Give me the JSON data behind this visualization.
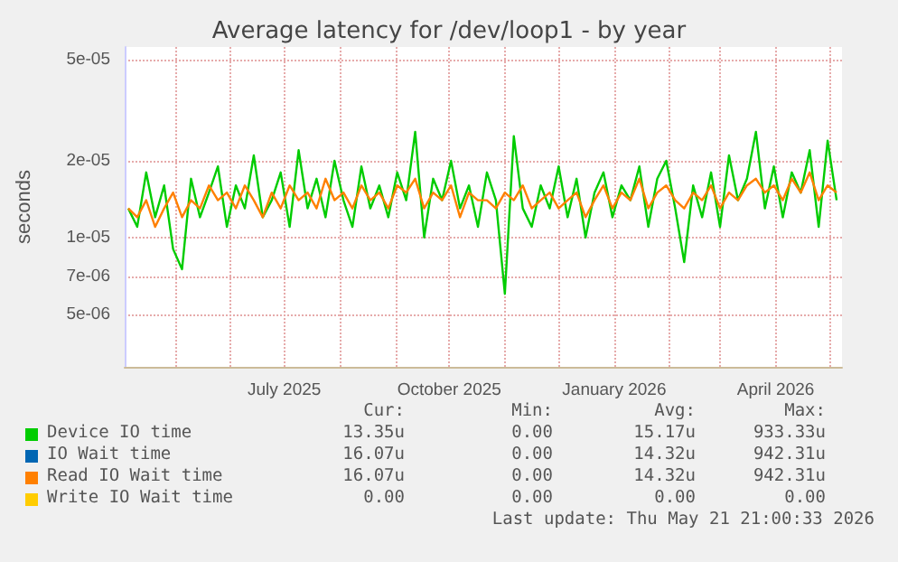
{
  "chart_data": {
    "type": "line",
    "title": "Average latency for /dev/loop1 - by year",
    "ylabel": "seconds",
    "log": "y",
    "grid": true,
    "legend": "bottom",
    "marker": "none",
    "line_style": "solid",
    "xlim": [
      "2025-04-03",
      "2026-05-08"
    ],
    "xticks": [
      {
        "value": "2025-05-01",
        "label": null
      },
      {
        "value": "2025-06-01",
        "label": null
      },
      {
        "value": "2025-07-01",
        "label": "July 2025"
      },
      {
        "value": "2025-08-01",
        "label": null
      },
      {
        "value": "2025-09-01",
        "label": null
      },
      {
        "value": "2025-10-01",
        "label": "October 2025"
      },
      {
        "value": "2025-11-01",
        "label": null
      },
      {
        "value": "2025-12-01",
        "label": null
      },
      {
        "value": "2026-01-01",
        "label": "January 2026"
      },
      {
        "value": "2026-02-01",
        "label": null
      },
      {
        "value": "2026-03-01",
        "label": null
      },
      {
        "value": "2026-04-01",
        "label": "April 2026"
      },
      {
        "value": "2026-05-01",
        "label": null
      }
    ],
    "ylim": [
      3.1e-06,
      5.6e-05
    ],
    "yticks": [
      {
        "value": 5e-06,
        "label": "5e-06"
      },
      {
        "value": 7e-06,
        "label": "7e-06"
      },
      {
        "value": 1e-05,
        "label": "1e-05"
      },
      {
        "value": 2e-05,
        "label": "2e-05"
      },
      {
        "value": 5e-05,
        "label": "5e-05"
      }
    ],
    "x": [
      "2025-04-05",
      "2025-04-10",
      "2025-04-15",
      "2025-04-20",
      "2025-04-25",
      "2025-04-30",
      "2025-05-05",
      "2025-05-10",
      "2025-05-15",
      "2025-05-20",
      "2025-05-25",
      "2025-05-30",
      "2025-06-04",
      "2025-06-09",
      "2025-06-14",
      "2025-06-19",
      "2025-06-24",
      "2025-06-29",
      "2025-07-04",
      "2025-07-09",
      "2025-07-14",
      "2025-07-19",
      "2025-07-24",
      "2025-07-29",
      "2025-08-03",
      "2025-08-08",
      "2025-08-13",
      "2025-08-18",
      "2025-08-23",
      "2025-08-28",
      "2025-09-02",
      "2025-09-07",
      "2025-09-12",
      "2025-09-17",
      "2025-09-22",
      "2025-09-27",
      "2025-10-02",
      "2025-10-07",
      "2025-10-12",
      "2025-10-17",
      "2025-10-22",
      "2025-10-27",
      "2025-11-01",
      "2025-11-06",
      "2025-11-11",
      "2025-11-16",
      "2025-11-21",
      "2025-11-26",
      "2025-12-01",
      "2025-12-06",
      "2025-12-11",
      "2025-12-16",
      "2025-12-21",
      "2025-12-26",
      "2025-12-31",
      "2026-01-05",
      "2026-01-10",
      "2026-01-15",
      "2026-01-20",
      "2026-01-25",
      "2026-01-30",
      "2026-02-04",
      "2026-02-09",
      "2026-02-14",
      "2026-02-19",
      "2026-02-24",
      "2026-03-01",
      "2026-03-06",
      "2026-03-11",
      "2026-03-16",
      "2026-03-21",
      "2026-03-26",
      "2026-03-31",
      "2026-04-05",
      "2026-04-10",
      "2026-04-15",
      "2026-04-20",
      "2026-04-25",
      "2026-04-30",
      "2026-05-05"
    ],
    "series": [
      {
        "name": "Device IO time",
        "color": "#00cc00",
        "values": [
          1.3e-05,
          1.1e-05,
          1.8e-05,
          1.2e-05,
          1.6e-05,
          9e-06,
          7.5e-06,
          1.7e-05,
          1.2e-05,
          1.5e-05,
          1.9e-05,
          1.1e-05,
          1.6e-05,
          1.3e-05,
          2.1e-05,
          1.2e-05,
          1.4e-05,
          1.8e-05,
          1.1e-05,
          2.2e-05,
          1.3e-05,
          1.7e-05,
          1.2e-05,
          2e-05,
          1.4e-05,
          1.1e-05,
          1.9e-05,
          1.3e-05,
          1.6e-05,
          1.2e-05,
          1.8e-05,
          1.4e-05,
          2.6e-05,
          1e-05,
          1.7e-05,
          1.4e-05,
          2e-05,
          1.3e-05,
          1.6e-05,
          1.1e-05,
          1.8e-05,
          1.4e-05,
          6e-06,
          2.5e-05,
          1.3e-05,
          1.1e-05,
          1.6e-05,
          1.3e-05,
          1.9e-05,
          1.2e-05,
          1.7e-05,
          1e-05,
          1.5e-05,
          1.8e-05,
          1.2e-05,
          1.6e-05,
          1.4e-05,
          1.9e-05,
          1.1e-05,
          1.7e-05,
          2e-05,
          1.3e-05,
          8e-06,
          1.6e-05,
          1.2e-05,
          1.8e-05,
          1.1e-05,
          2.1e-05,
          1.4e-05,
          1.7e-05,
          2.6e-05,
          1.3e-05,
          1.9e-05,
          1.2e-05,
          1.8e-05,
          1.5e-05,
          2.2e-05,
          1.1e-05,
          2.4e-05,
          1.4e-05
        ]
      },
      {
        "name": "IO Wait time",
        "color": "#0066b3",
        "values": [
          null,
          null,
          null,
          null,
          null,
          null,
          null,
          null,
          null,
          null,
          null,
          null,
          null,
          null,
          null,
          null,
          null,
          null,
          null,
          null,
          null,
          null,
          null,
          null,
          null,
          null,
          null,
          null,
          null,
          null,
          null,
          null,
          null,
          null,
          null,
          null,
          null,
          null,
          null,
          null,
          null,
          null,
          null,
          null,
          null,
          null,
          null,
          null,
          null,
          null,
          null,
          null,
          null,
          null,
          null,
          null,
          null,
          null,
          null,
          null,
          null,
          null,
          null,
          null,
          null,
          null,
          null,
          null,
          null,
          null,
          null,
          null,
          null,
          null,
          null,
          null,
          null,
          null,
          null,
          null
        ]
      },
      {
        "name": "Read IO Wait time",
        "color": "#ff8000",
        "values": [
          1.3e-05,
          1.2e-05,
          1.4e-05,
          1.1e-05,
          1.3e-05,
          1.5e-05,
          1.2e-05,
          1.4e-05,
          1.3e-05,
          1.6e-05,
          1.4e-05,
          1.5e-05,
          1.3e-05,
          1.6e-05,
          1.4e-05,
          1.2e-05,
          1.5e-05,
          1.3e-05,
          1.6e-05,
          1.4e-05,
          1.5e-05,
          1.3e-05,
          1.7e-05,
          1.4e-05,
          1.5e-05,
          1.3e-05,
          1.6e-05,
          1.4e-05,
          1.5e-05,
          1.3e-05,
          1.6e-05,
          1.5e-05,
          1.7e-05,
          1.3e-05,
          1.5e-05,
          1.4e-05,
          1.6e-05,
          1.2e-05,
          1.5e-05,
          1.4e-05,
          1.4e-05,
          1.3e-05,
          1.5e-05,
          1.4e-05,
          1.6e-05,
          1.3e-05,
          1.4e-05,
          1.5e-05,
          1.3e-05,
          1.4e-05,
          1.5e-05,
          1.2e-05,
          1.4e-05,
          1.6e-05,
          1.3e-05,
          1.5e-05,
          1.4e-05,
          1.7e-05,
          1.3e-05,
          1.5e-05,
          1.6e-05,
          1.4e-05,
          1.3e-05,
          1.5e-05,
          1.4e-05,
          1.6e-05,
          1.3e-05,
          1.5e-05,
          1.4e-05,
          1.6e-05,
          1.7e-05,
          1.5e-05,
          1.6e-05,
          1.4e-05,
          1.7e-05,
          1.5e-05,
          1.8e-05,
          1.4e-05,
          1.6e-05,
          1.5e-05
        ]
      },
      {
        "name": "Write IO Wait time",
        "color": "#ffcc00",
        "values": [
          null,
          null,
          null,
          null,
          null,
          null,
          null,
          null,
          null,
          null,
          null,
          null,
          null,
          null,
          null,
          null,
          null,
          null,
          null,
          null,
          null,
          null,
          null,
          null,
          null,
          null,
          null,
          null,
          null,
          null,
          null,
          null,
          null,
          null,
          null,
          null,
          null,
          null,
          null,
          null,
          null,
          null,
          null,
          null,
          null,
          null,
          null,
          null,
          null,
          null,
          null,
          null,
          null,
          null,
          null,
          null,
          null,
          null,
          null,
          null,
          null,
          null,
          null,
          null,
          null,
          null,
          null,
          null,
          null,
          null,
          null,
          null,
          null,
          null,
          null,
          null,
          null,
          null,
          null,
          null
        ]
      }
    ],
    "annotations": [
      "Cur:",
      "Min:",
      "Avg:",
      "Max:",
      "13.35u",
      "0.00",
      "15.17u",
      "933.33u",
      "16.07u",
      "0.00",
      "14.32u",
      "942.31u",
      "16.07u",
      "0.00",
      "14.32u",
      "942.31u",
      "0.00",
      "0.00",
      "0.00",
      "0.00",
      "Last update: Thu May 21 21:00:33 2026"
    ]
  }
}
